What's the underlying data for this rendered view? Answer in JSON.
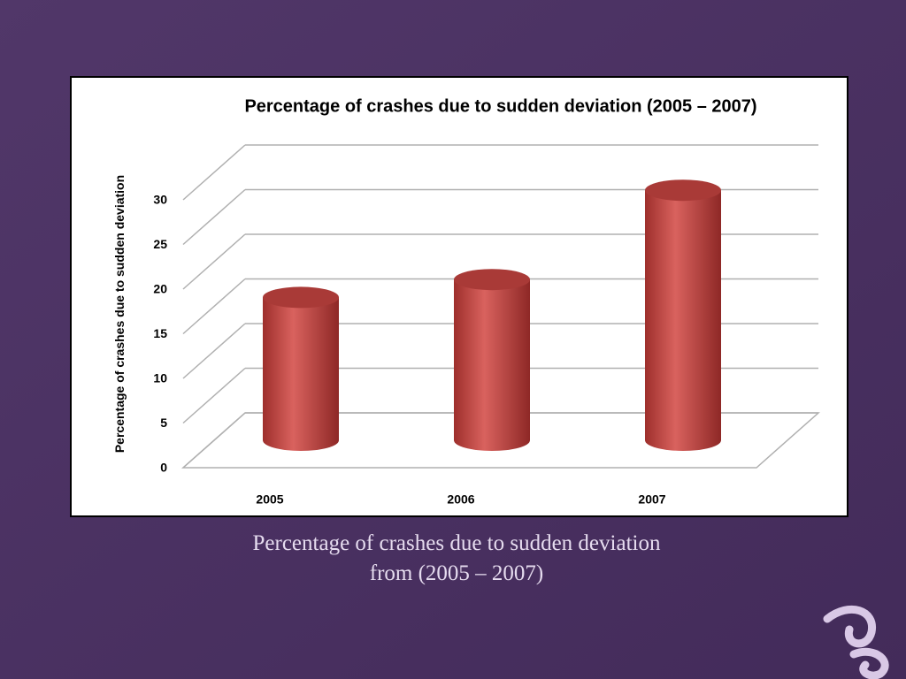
{
  "chart_data": {
    "type": "bar",
    "title": "Percentage of crashes due to sudden deviation (2005 – 2007)",
    "y_label": "Percentage of crashes  due to sudden deviation",
    "categories": [
      "2005",
      "2006",
      "2007"
    ],
    "values": [
      16,
      18,
      28
    ],
    "color": "#c0504d",
    "ylim": [
      0,
      30
    ],
    "yticks": [
      0,
      5,
      10,
      15,
      20,
      25,
      30
    ],
    "grid": true
  },
  "caption": "Percentage of crashes due to sudden deviation from (2005 – 2007)"
}
